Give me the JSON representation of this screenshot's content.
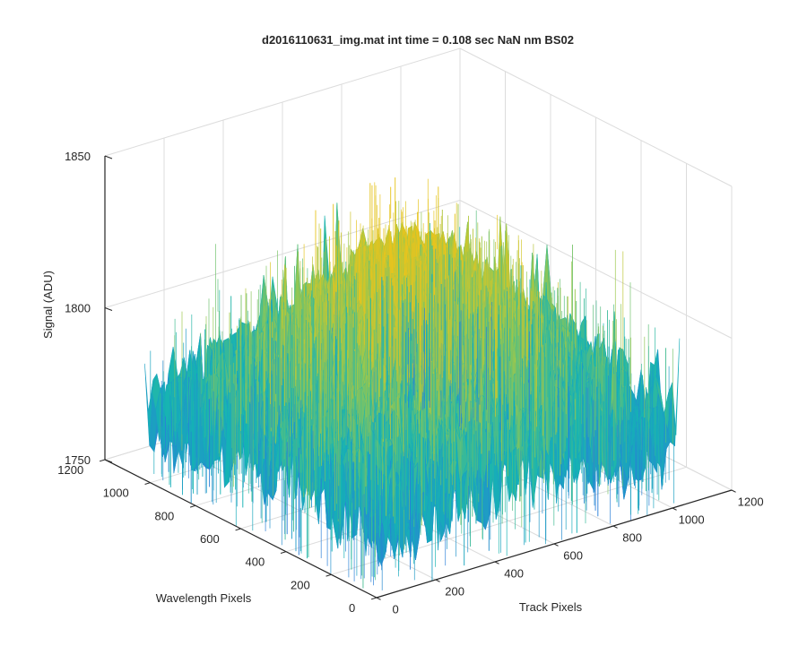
{
  "chart_data": {
    "type": "surface",
    "title": "d2016110631_img.mat int time = 0.108 sec  NaN nm BS02",
    "xlabel": "Track Pixels",
    "ylabel": "Wavelength Pixels",
    "zlabel": "Signal (ADU)",
    "xlim": [
      0,
      1200
    ],
    "ylim": [
      0,
      1200
    ],
    "zlim": [
      1750,
      1850
    ],
    "x_ticks": [
      "0",
      "200",
      "400",
      "600",
      "800",
      "1000",
      "1200"
    ],
    "y_ticks": [
      "0",
      "200",
      "400",
      "600",
      "800",
      "1000",
      "1200"
    ],
    "z_ticks": [
      "1750",
      "1800",
      "1850"
    ],
    "grid": true,
    "colormap": "parula",
    "data_extent": {
      "x": [
        0,
        1024
      ],
      "y": [
        0,
        1024
      ]
    },
    "surface_summary": {
      "baseline": 1772,
      "ridge_peak": 1820,
      "ridge_center": {
        "x": 512,
        "y": 512
      },
      "noise_min": 1752,
      "noise_max": 1838
    },
    "colors": {
      "low": "#2a7fd8",
      "mid": "#14b4b4",
      "high": "#e6c41e",
      "axis": "#262626",
      "grid": "#dcdcdc"
    }
  }
}
